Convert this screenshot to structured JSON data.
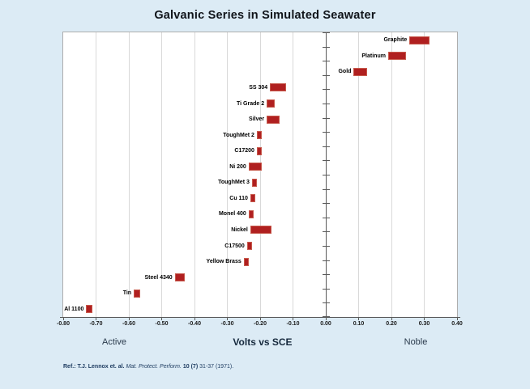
{
  "page": {
    "background_color": "#dcebf5",
    "plot_background_color": "#ffffff",
    "gridline_color": "#d9d9d9",
    "axis_color": "#5a5a5a",
    "text_color": "#10141a",
    "reference_text_color": "#1c3a5f"
  },
  "chart": {
    "title": "Galvanic Series in Simulated Seawater",
    "caption_left": "Active",
    "caption_center": "Volts vs SCE",
    "caption_right": "Noble",
    "reference": {
      "prefix": "Ref.:",
      "authors": "T.J. Lennox et. al.",
      "journal": "Mat. Protect. Perform.",
      "volume": "10 (7)",
      "pages": "31-37 (1971)."
    }
  },
  "chart_data": {
    "type": "bar",
    "subtype": "horizontal-range-bars",
    "title": "Galvanic Series in Simulated Seawater",
    "xlabel": "Volts vs SCE",
    "x_left_end_label": "Active",
    "x_right_end_label": "Noble",
    "xlim": [
      -0.8,
      0.4
    ],
    "xtick_values": [
      -0.8,
      -0.7,
      -0.6,
      -0.5,
      -0.4,
      -0.3,
      -0.2,
      -0.1,
      0.0,
      0.1,
      0.2,
      0.3,
      0.4
    ],
    "xtick_labels": [
      "-0.80",
      "-0.70",
      "-0.60",
      "-0.50",
      "-0.40",
      "-0.30",
      "-0.20",
      "-0.10",
      "0.00",
      "0.10",
      "0.20",
      "0.30",
      "0.40"
    ],
    "grid": true,
    "legend": false,
    "bar_color": "#b02020",
    "series": [
      {
        "name": "Graphite",
        "range_v_sce": [
          0.255,
          0.315
        ]
      },
      {
        "name": "Platinum",
        "range_v_sce": [
          0.19,
          0.245
        ]
      },
      {
        "name": "Gold",
        "range_v_sce": [
          0.085,
          0.125
        ]
      },
      {
        "name": "SS 304",
        "range_v_sce": [
          -0.17,
          -0.12
        ]
      },
      {
        "name": "Ti Grade 2",
        "range_v_sce": [
          -0.18,
          -0.155
        ]
      },
      {
        "name": "Silver",
        "range_v_sce": [
          -0.18,
          -0.14
        ]
      },
      {
        "name": "ToughMet 2",
        "range_v_sce": [
          -0.21,
          -0.195
        ]
      },
      {
        "name": "C17200",
        "range_v_sce": [
          -0.21,
          -0.195
        ]
      },
      {
        "name": "Ni 200",
        "range_v_sce": [
          -0.235,
          -0.195
        ]
      },
      {
        "name": "ToughMet 3",
        "range_v_sce": [
          -0.225,
          -0.21
        ]
      },
      {
        "name": "Cu 110",
        "range_v_sce": [
          -0.23,
          -0.215
        ]
      },
      {
        "name": "Monel 400",
        "range_v_sce": [
          -0.235,
          -0.22
        ]
      },
      {
        "name": "Nickel",
        "range_v_sce": [
          -0.23,
          -0.165
        ]
      },
      {
        "name": "C17500",
        "range_v_sce": [
          -0.24,
          -0.225
        ]
      },
      {
        "name": "Yellow Brass",
        "range_v_sce": [
          -0.25,
          -0.235
        ]
      },
      {
        "name": "Steel 4340",
        "range_v_sce": [
          -0.46,
          -0.43
        ]
      },
      {
        "name": "Tin",
        "range_v_sce": [
          -0.585,
          -0.565
        ]
      },
      {
        "name": "Al 1100",
        "range_v_sce": [
          -0.73,
          -0.71
        ]
      }
    ]
  }
}
